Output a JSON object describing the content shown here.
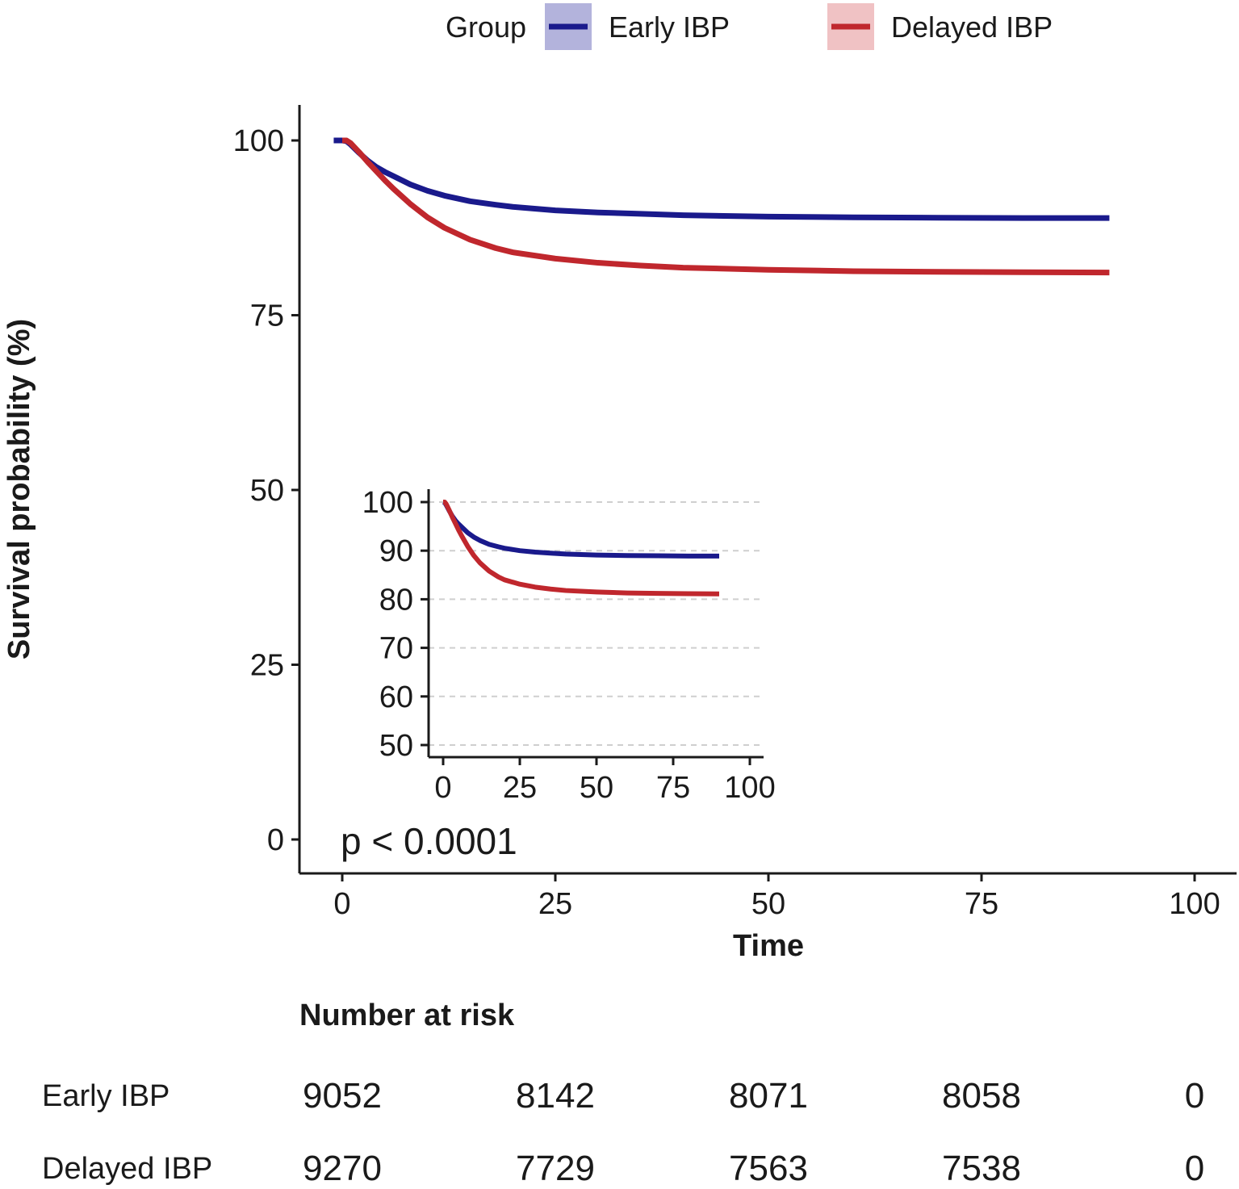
{
  "legend": {
    "title": "Group",
    "entries": [
      {
        "label": "Early IBP",
        "color": "#1a1a8c",
        "band_color": "#b3b3dc"
      },
      {
        "label": "Delayed IBP",
        "color": "#c0272d",
        "band_color": "#f0c2c4"
      }
    ]
  },
  "chart_data": [
    {
      "type": "line",
      "name": "main",
      "title": "",
      "xlabel": "Time",
      "ylabel": "Survival probability (%)",
      "xlim": [
        0,
        100
      ],
      "ylim": [
        0,
        100
      ],
      "xticks": [
        "0",
        "25",
        "50",
        "75",
        "100"
      ],
      "yticks": [
        "0",
        "25",
        "50",
        "75",
        "100"
      ],
      "grid": false,
      "legend_position": "top",
      "annotation": "p < 0.0001",
      "series": [
        {
          "name": "Early IBP",
          "color": "#1a1a8c",
          "x": [
            -1,
            0,
            0.5,
            1,
            2,
            3,
            4,
            5,
            6,
            8,
            10,
            12,
            15,
            18,
            20,
            25,
            30,
            35,
            40,
            50,
            60,
            70,
            80,
            90
          ],
          "y": [
            100,
            100,
            99.9,
            99.4,
            98.2,
            97.1,
            96.2,
            95.5,
            94.9,
            93.7,
            92.8,
            92.1,
            91.3,
            90.8,
            90.5,
            90.0,
            89.7,
            89.5,
            89.3,
            89.1,
            89.0,
            88.95,
            88.9,
            88.9
          ]
        },
        {
          "name": "Delayed IBP",
          "color": "#c0272d",
          "x": [
            0,
            0.5,
            1,
            2,
            3,
            4,
            5,
            6,
            8,
            10,
            12,
            15,
            18,
            20,
            25,
            30,
            35,
            40,
            50,
            60,
            70,
            80,
            90
          ],
          "y": [
            100,
            100,
            99.6,
            98.3,
            96.9,
            95.6,
            94.3,
            93.1,
            90.9,
            89.0,
            87.5,
            85.8,
            84.6,
            84.0,
            83.1,
            82.5,
            82.1,
            81.8,
            81.5,
            81.3,
            81.2,
            81.15,
            81.1
          ]
        }
      ]
    },
    {
      "type": "line",
      "name": "inset",
      "xlim": [
        0,
        100
      ],
      "ylim": [
        50,
        100
      ],
      "xticks": [
        "0",
        "25",
        "50",
        "75",
        "100"
      ],
      "yticks": [
        "50",
        "60",
        "70",
        "80",
        "90",
        "100"
      ],
      "grid": true,
      "series": [
        {
          "name": "Early IBP",
          "color": "#1a1a8c",
          "x": [
            0,
            0.5,
            1,
            2,
            3,
            4,
            5,
            6,
            8,
            10,
            12,
            15,
            18,
            20,
            25,
            30,
            35,
            40,
            50,
            60,
            70,
            80,
            90
          ],
          "y": [
            100,
            99.9,
            99.4,
            98.2,
            97.1,
            96.2,
            95.5,
            94.9,
            93.7,
            92.8,
            92.1,
            91.3,
            90.8,
            90.5,
            90.0,
            89.7,
            89.5,
            89.3,
            89.1,
            89.0,
            88.95,
            88.9,
            88.9
          ]
        },
        {
          "name": "Delayed IBP",
          "color": "#c0272d",
          "x": [
            0,
            0.5,
            1,
            2,
            3,
            4,
            5,
            6,
            8,
            10,
            12,
            15,
            18,
            20,
            25,
            30,
            35,
            40,
            50,
            60,
            70,
            80,
            90
          ],
          "y": [
            100,
            100,
            99.6,
            98.3,
            96.9,
            95.6,
            94.3,
            93.1,
            90.9,
            89.0,
            87.5,
            85.8,
            84.6,
            84.0,
            83.1,
            82.5,
            82.1,
            81.8,
            81.5,
            81.3,
            81.2,
            81.15,
            81.1
          ]
        }
      ]
    },
    {
      "type": "table",
      "name": "risk-table",
      "title": "Number at risk",
      "columns": [
        "0",
        "25",
        "50",
        "75",
        "100"
      ],
      "rows": [
        {
          "label": "Early IBP",
          "values": [
            "9052",
            "8142",
            "8071",
            "8058",
            "0"
          ]
        },
        {
          "label": "Delayed IBP",
          "values": [
            "9270",
            "7729",
            "7563",
            "7538",
            "0"
          ]
        }
      ]
    }
  ]
}
